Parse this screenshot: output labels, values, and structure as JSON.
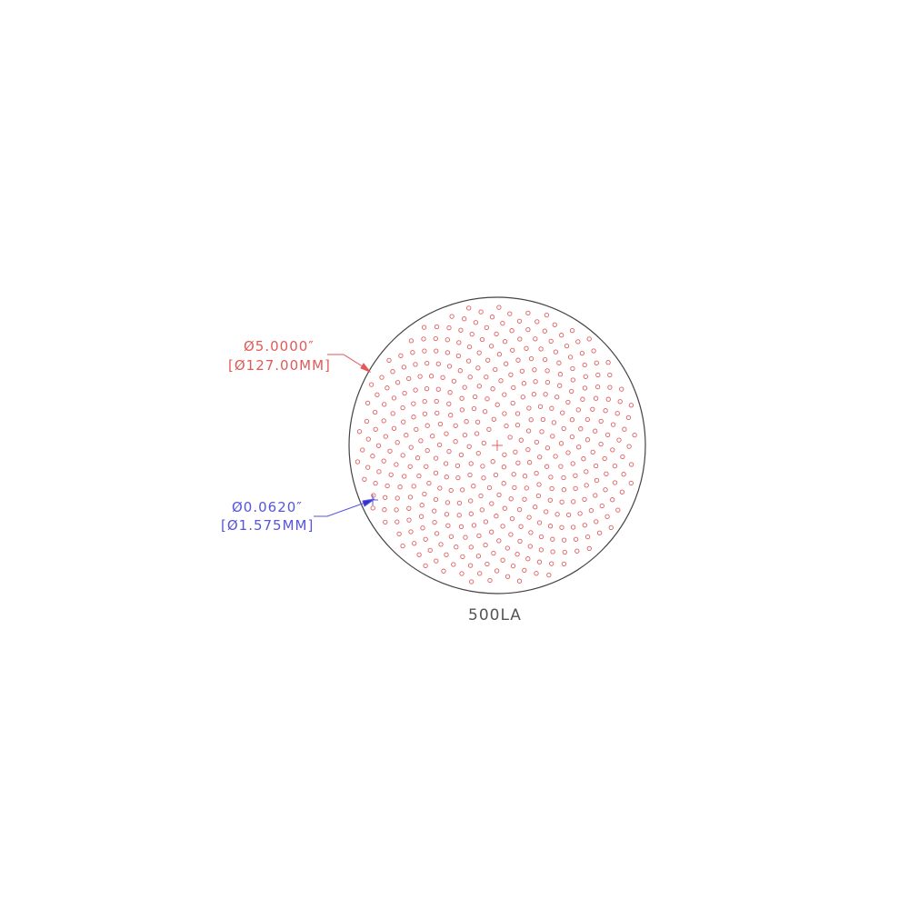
{
  "drawing": {
    "title": "500LA",
    "outer_dimension": {
      "inch": "Ø5.0000″",
      "mm": "[Ø127.00MM]",
      "color": "#e05a5a"
    },
    "hole_dimension": {
      "inch": "Ø0.0620″",
      "mm": "[Ø1.575MM]",
      "color": "#5555dd"
    },
    "outline_color": "#444444",
    "hole_color": "#e06060"
  }
}
